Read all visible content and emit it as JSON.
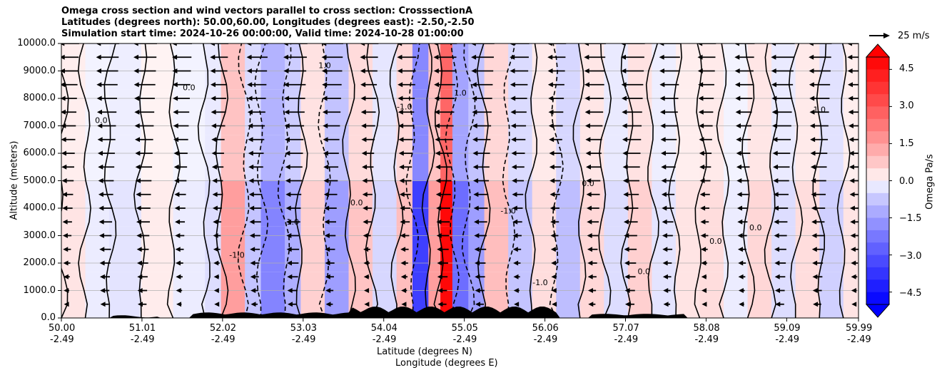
{
  "chart_data": {
    "type": "heatmap",
    "title_lines": [
      "Omega cross section and wind vectors parallel to cross section: CrosssectionA",
      "Latitudes (degrees north): 50.00,60.00, Longitudes (degrees east): -2.50,-2.50",
      "Simulation start time: 2024-10-26 00:00:00, Valid time: 2024-10-28 01:00:00"
    ],
    "ylabel": "Altitude (meters)",
    "xlabel_lines": [
      "Latitude (degrees N)",
      "Longitude (degrees E)"
    ],
    "ylim": [
      0,
      10000
    ],
    "xlim": [
      50.0,
      59.99
    ],
    "y_ticks": [
      "0.0",
      "1000.0",
      "2000.0",
      "3000.0",
      "4000.0",
      "5000.0",
      "6000.0",
      "7000.0",
      "8000.0",
      "9000.0",
      "10000.0"
    ],
    "x_ticks": [
      {
        "lat": "50.00",
        "lon": "-2.49"
      },
      {
        "lat": "51.01",
        "lon": "-2.49"
      },
      {
        "lat": "52.02",
        "lon": "-2.49"
      },
      {
        "lat": "53.03",
        "lon": "-2.49"
      },
      {
        "lat": "54.04",
        "lon": "-2.49"
      },
      {
        "lat": "55.05",
        "lon": "-2.49"
      },
      {
        "lat": "56.06",
        "lon": "-2.49"
      },
      {
        "lat": "57.07",
        "lon": "-2.49"
      },
      {
        "lat": "58.08",
        "lon": "-2.49"
      },
      {
        "lat": "59.09",
        "lon": "-2.49"
      },
      {
        "lat": "59.99",
        "lon": "-2.49"
      }
    ],
    "colorbar": {
      "label": "Omega Pa/s",
      "range": [
        -5,
        5
      ],
      "ticks": [
        "4.5",
        "3.0",
        "1.5",
        "0.0",
        "−1.5",
        "−3.0",
        "−4.5"
      ],
      "tick_values": [
        4.5,
        3.0,
        1.5,
        0.0,
        -1.5,
        -3.0,
        -4.5
      ]
    },
    "quiver_key": "25 m/s",
    "contour_labels": [
      "0.0",
      "1.0",
      "-1.0"
    ],
    "omega_columns": [
      {
        "lat": 50.0,
        "omega": 0.3
      },
      {
        "lat": 50.3,
        "omega": -0.2
      },
      {
        "lat": 50.6,
        "omega": -0.3
      },
      {
        "lat": 51.0,
        "omega": 0.2
      },
      {
        "lat": 51.4,
        "omega": -0.2
      },
      {
        "lat": 51.8,
        "omega": -0.4
      },
      {
        "lat": 52.0,
        "omega": 1.5
      },
      {
        "lat": 52.3,
        "omega": -0.8
      },
      {
        "lat": 52.5,
        "omega": -2.0
      },
      {
        "lat": 52.8,
        "omega": -1.2
      },
      {
        "lat": 53.0,
        "omega": 0.6
      },
      {
        "lat": 53.3,
        "omega": -1.5
      },
      {
        "lat": 53.6,
        "omega": 0.8
      },
      {
        "lat": 53.9,
        "omega": -0.5
      },
      {
        "lat": 54.2,
        "omega": 0.9
      },
      {
        "lat": 54.4,
        "omega": -3.5
      },
      {
        "lat": 54.6,
        "omega": 1.5
      },
      {
        "lat": 54.75,
        "omega": 4.8
      },
      {
        "lat": 54.9,
        "omega": -2.5
      },
      {
        "lat": 55.1,
        "omega": -1.5
      },
      {
        "lat": 55.3,
        "omega": 0.9
      },
      {
        "lat": 55.6,
        "omega": -0.8
      },
      {
        "lat": 55.9,
        "omega": 0.4
      },
      {
        "lat": 56.2,
        "omega": -0.9
      },
      {
        "lat": 56.5,
        "omega": 0.5
      },
      {
        "lat": 56.8,
        "omega": -0.4
      },
      {
        "lat": 57.1,
        "omega": 0.6
      },
      {
        "lat": 57.4,
        "omega": -0.3
      },
      {
        "lat": 57.7,
        "omega": 0.3
      },
      {
        "lat": 58.0,
        "omega": 0.4
      },
      {
        "lat": 58.3,
        "omega": -0.2
      },
      {
        "lat": 58.6,
        "omega": 0.5
      },
      {
        "lat": 58.9,
        "omega": -0.4
      },
      {
        "lat": 59.2,
        "omega": 0.4
      },
      {
        "lat": 59.5,
        "omega": -0.6
      },
      {
        "lat": 59.8,
        "omega": 0.3
      }
    ],
    "wind_direction": "toward decreasing latitude"
  }
}
